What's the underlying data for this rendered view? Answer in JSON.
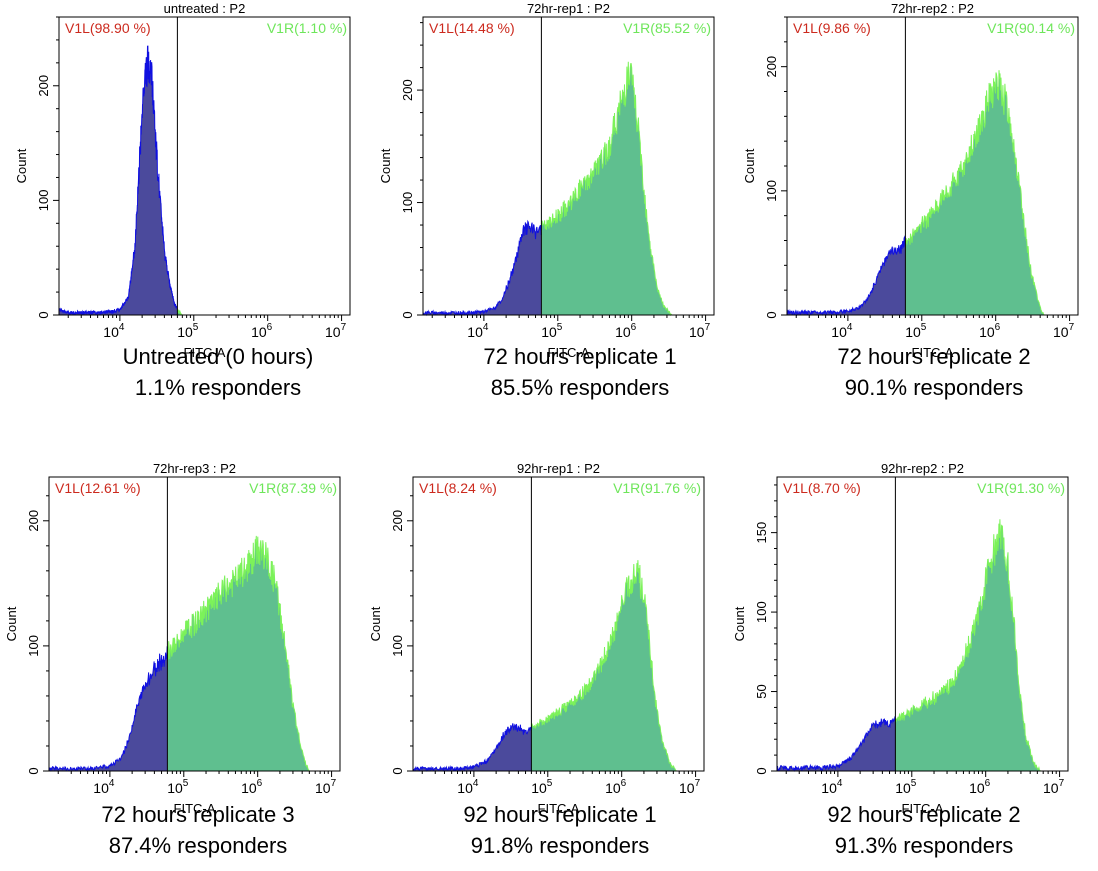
{
  "colors": {
    "left_fill": "#4b4a9c",
    "left_line": "#1010e0",
    "right_fill": "#5fbf8f",
    "right_line": "#7cf25a",
    "left_label": "#cc2a1e",
    "right_label": "#6ee65a"
  },
  "chart_data": [
    {
      "type": "area",
      "title": "untreated : P2",
      "xlabel": "FITC-A",
      "ylabel": "Count",
      "x_scale": "log",
      "xlim": [
        1500,
        13000000
      ],
      "ylim": [
        0,
        260
      ],
      "x_ticks": [
        10000,
        100000,
        1000000,
        10000000
      ],
      "x_tick_labels": [
        "10",
        "10",
        "10",
        "10"
      ],
      "x_tick_exponents": [
        "4",
        "5",
        "6",
        "7"
      ],
      "y_ticks": [
        0,
        100,
        200
      ],
      "y_tick_labels": [
        "0",
        "100",
        "200"
      ],
      "gate_x": 60000,
      "gate_left_label": "V1L(98.90 %)",
      "gate_right_label": "V1R(1.10 %)",
      "caption": [
        "Untreated (0 hours)",
        "1.1% responders"
      ],
      "x": [
        1500,
        2000,
        3000,
        5000,
        8000,
        10000,
        13000,
        16000,
        19000,
        21000,
        23000,
        25000,
        27000,
        30000,
        34000,
        40000,
        48000,
        55000,
        60000,
        65000,
        70000
      ],
      "y": [
        5,
        2,
        2,
        2,
        3,
        5,
        15,
        60,
        150,
        200,
        215,
        222,
        205,
        160,
        110,
        55,
        25,
        10,
        5,
        2,
        0
      ]
    },
    {
      "type": "area",
      "title": "72hr-rep1 : P2",
      "xlabel": "FITC-A",
      "ylabel": "Count",
      "x_scale": "log",
      "xlim": [
        1500,
        13000000
      ],
      "ylim": [
        0,
        265
      ],
      "x_ticks": [
        10000,
        100000,
        1000000,
        10000000
      ],
      "x_tick_labels": [
        "10",
        "10",
        "10",
        "10"
      ],
      "x_tick_exponents": [
        "4",
        "5",
        "6",
        "7"
      ],
      "y_ticks": [
        0,
        100,
        200
      ],
      "y_tick_labels": [
        "0",
        "100",
        "200"
      ],
      "gate_x": 60000,
      "gate_left_label": "V1L(14.48 %)",
      "gate_right_label": "V1R(85.52 %)",
      "caption": [
        "72 hours replicate 1",
        "85.5% responders"
      ],
      "x": [
        1500,
        3000,
        6000,
        10000,
        14000,
        18000,
        22000,
        26000,
        30000,
        35000,
        40000,
        50000,
        60000,
        80000,
        100000,
        130000,
        160000,
        200000,
        250000,
        300000,
        400000,
        500000,
        600000,
        700000,
        800000,
        900000,
        1000000,
        1100000,
        1300000,
        1500000,
        1800000,
        2200000,
        2700000,
        3500000
      ],
      "y": [
        2,
        2,
        2,
        3,
        6,
        15,
        30,
        45,
        62,
        75,
        78,
        74,
        78,
        82,
        88,
        95,
        103,
        112,
        118,
        126,
        138,
        150,
        170,
        185,
        200,
        212,
        210,
        190,
        150,
        105,
        60,
        25,
        8,
        0
      ]
    },
    {
      "type": "area",
      "title": "72hr-rep2 : P2",
      "xlabel": "FITC-A",
      "ylabel": "Count",
      "x_scale": "log",
      "xlim": [
        1500,
        13000000
      ],
      "ylim": [
        0,
        240
      ],
      "x_ticks": [
        10000,
        100000,
        1000000,
        10000000
      ],
      "x_tick_labels": [
        "10",
        "10",
        "10",
        "10"
      ],
      "x_tick_exponents": [
        "4",
        "5",
        "6",
        "7"
      ],
      "y_ticks": [
        0,
        100,
        200
      ],
      "y_tick_labels": [
        "0",
        "100",
        "200"
      ],
      "gate_x": 60000,
      "gate_left_label": "V1L(9.86 %)",
      "gate_right_label": "V1R(90.14 %)",
      "caption": [
        "72 hours replicate 2",
        "90.1% responders"
      ],
      "x": [
        1500,
        3000,
        6000,
        10000,
        14000,
        18000,
        22000,
        26000,
        30000,
        35000,
        40000,
        50000,
        60000,
        80000,
        100000,
        130000,
        160000,
        200000,
        250000,
        300000,
        400000,
        500000,
        600000,
        700000,
        800000,
        900000,
        1000000,
        1200000,
        1400000,
        1700000,
        2000000,
        2500000,
        3000000,
        3800000,
        4500000
      ],
      "y": [
        2,
        2,
        2,
        3,
        6,
        12,
        22,
        32,
        42,
        48,
        52,
        52,
        60,
        65,
        72,
        80,
        88,
        96,
        104,
        112,
        124,
        138,
        152,
        162,
        172,
        178,
        185,
        182,
        170,
        145,
        110,
        70,
        35,
        10,
        0
      ]
    },
    {
      "type": "area",
      "title": "72hr-rep3 : P2",
      "xlabel": "FITC-A",
      "ylabel": "Count",
      "x_scale": "log",
      "xlim": [
        1500,
        13000000
      ],
      "ylim": [
        0,
        235
      ],
      "x_ticks": [
        10000,
        100000,
        1000000,
        10000000
      ],
      "x_tick_labels": [
        "10",
        "10",
        "10",
        "10"
      ],
      "x_tick_exponents": [
        "4",
        "5",
        "6",
        "7"
      ],
      "y_ticks": [
        0,
        100,
        200
      ],
      "y_tick_labels": [
        "0",
        "100",
        "200"
      ],
      "gate_x": 60000,
      "gate_left_label": "V1L(12.61 %)",
      "gate_right_label": "V1R(87.39 %)",
      "caption": [
        "72 hours replicate 3",
        "87.4% responders"
      ],
      "x": [
        1500,
        3000,
        6000,
        10000,
        14000,
        18000,
        22000,
        26000,
        30000,
        35000,
        40000,
        50000,
        60000,
        80000,
        100000,
        130000,
        160000,
        200000,
        250000,
        300000,
        400000,
        500000,
        600000,
        700000,
        800000,
        900000,
        1000000,
        1200000,
        1400000,
        1700000,
        2000000,
        2500000,
        3000000,
        3800000,
        4500000,
        5000000
      ],
      "y": [
        2,
        2,
        2,
        4,
        10,
        25,
        45,
        60,
        68,
        75,
        82,
        88,
        95,
        102,
        110,
        116,
        122,
        128,
        134,
        140,
        148,
        152,
        158,
        162,
        166,
        172,
        178,
        174,
        166,
        152,
        128,
        90,
        52,
        20,
        5,
        0
      ]
    },
    {
      "type": "area",
      "title": "92hr-rep1 : P2",
      "xlabel": "FITC-A",
      "ylabel": "Count",
      "x_scale": "log",
      "xlim": [
        1500,
        13000000
      ],
      "ylim": [
        0,
        235
      ],
      "x_ticks": [
        10000,
        100000,
        1000000,
        10000000
      ],
      "x_tick_labels": [
        "10",
        "10",
        "10",
        "10"
      ],
      "x_tick_exponents": [
        "4",
        "5",
        "6",
        "7"
      ],
      "y_ticks": [
        0,
        100,
        200
      ],
      "y_tick_labels": [
        "0",
        "100",
        "200"
      ],
      "gate_x": 60000,
      "gate_left_label": "V1L(8.24 %)",
      "gate_right_label": "V1R(91.76 %)",
      "caption": [
        "92 hours replicate 1",
        "91.8% responders"
      ],
      "x": [
        1500,
        3000,
        6000,
        10000,
        15000,
        20000,
        25000,
        30000,
        35000,
        40000,
        50000,
        60000,
        80000,
        100000,
        150000,
        200000,
        300000,
        400000,
        500000,
        700000,
        900000,
        1100000,
        1300000,
        1500000,
        1700000,
        2000000,
        2400000,
        2800000,
        3500000,
        4500000,
        5500000
      ],
      "y": [
        2,
        2,
        2,
        3,
        8,
        18,
        28,
        34,
        36,
        34,
        32,
        34,
        38,
        42,
        48,
        54,
        62,
        72,
        82,
        102,
        122,
        140,
        150,
        160,
        158,
        140,
        100,
        60,
        25,
        6,
        0
      ]
    },
    {
      "type": "area",
      "title": "92hr-rep2 : P2",
      "xlabel": "FITC-A",
      "ylabel": "Count",
      "x_scale": "log",
      "xlim": [
        1500,
        13000000
      ],
      "ylim": [
        0,
        185
      ],
      "x_ticks": [
        10000,
        100000,
        1000000,
        10000000
      ],
      "x_tick_labels": [
        "10",
        "10",
        "10",
        "10"
      ],
      "x_tick_exponents": [
        "4",
        "5",
        "6",
        "7"
      ],
      "y_ticks": [
        0,
        50,
        100,
        150
      ],
      "y_tick_labels": [
        "0",
        "50",
        "100",
        "150"
      ],
      "gate_x": 60000,
      "gate_left_label": "V1L(8.70 %)",
      "gate_right_label": "V1R(91.30 %)",
      "caption": [
        "92 hours replicate 2",
        "91.3% responders"
      ],
      "x": [
        1500,
        3000,
        6000,
        10000,
        15000,
        20000,
        25000,
        30000,
        35000,
        40000,
        50000,
        60000,
        80000,
        100000,
        150000,
        200000,
        300000,
        400000,
        500000,
        700000,
        900000,
        1100000,
        1300000,
        1500000,
        1700000,
        2000000,
        2400000,
        2800000,
        3500000,
        4500000,
        5500000
      ],
      "y": [
        2,
        2,
        2,
        3,
        8,
        16,
        24,
        28,
        30,
        30,
        30,
        32,
        35,
        38,
        42,
        46,
        52,
        60,
        70,
        90,
        110,
        128,
        140,
        148,
        145,
        130,
        95,
        55,
        22,
        5,
        0
      ]
    }
  ]
}
